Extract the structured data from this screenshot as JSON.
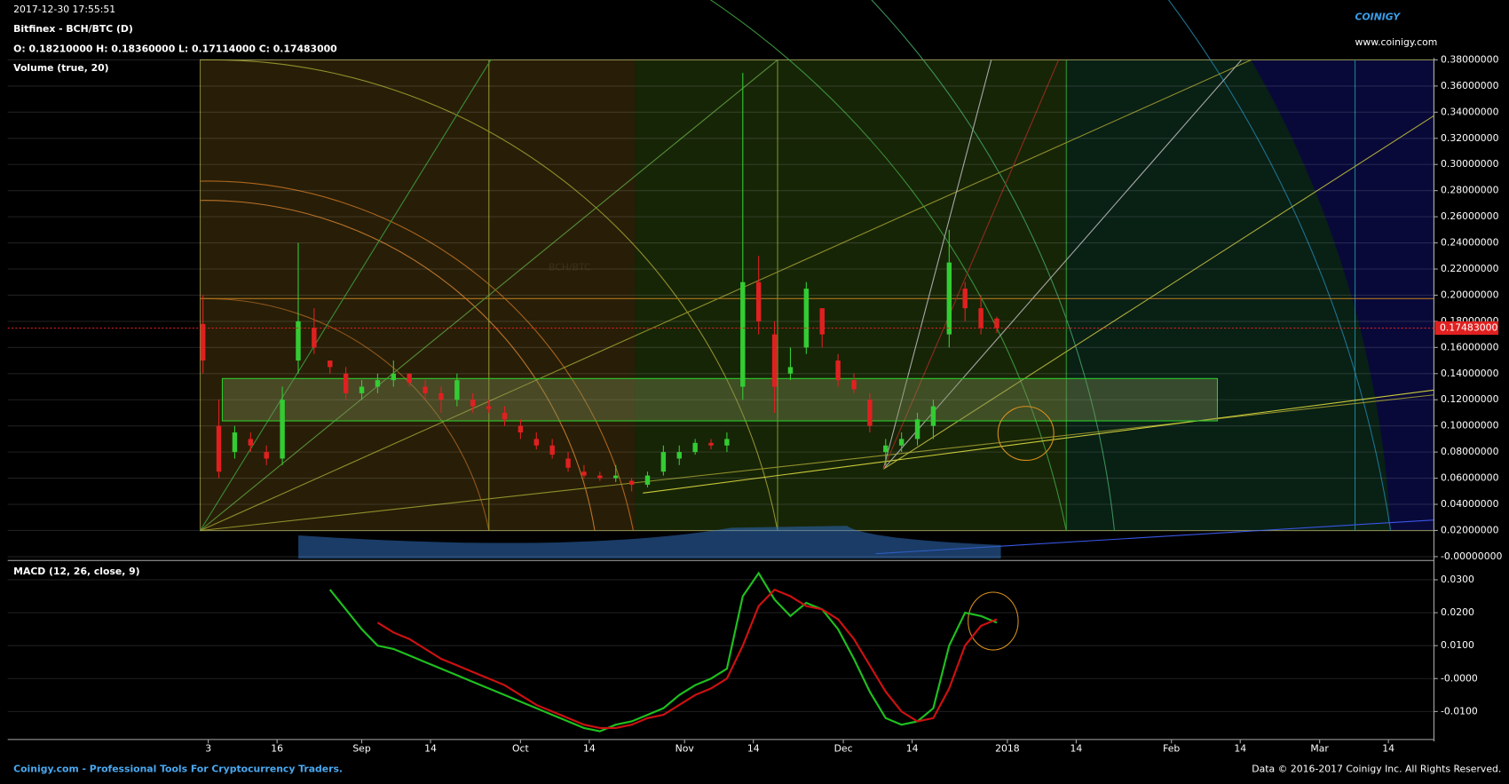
{
  "header": {
    "timestamp": "2017-12-30 17:55:51",
    "ohlc": "O: 0.18210000 H: 0.18360000 L: 0.17114000 C: 0.17483000",
    "logo": "COINIGY",
    "site": "www.coinigy.com",
    "volume_label": "Volume (true, 20)",
    "watermark": "BCH/BTC"
  },
  "footer": {
    "left": "Coinigy.com - Professional Tools For Cryptocurrency Traders.",
    "right": "Data © 2016-2017 Coinigy Inc. All Rights Reserved."
  },
  "chart_data": [
    {
      "type": "candlestick",
      "title": "Bitfinex - BCH/BTC (D)",
      "up_color": "#33cc33",
      "down_color": "#e02020",
      "x": [
        1,
        4,
        7,
        10,
        13,
        16,
        19,
        22,
        25,
        28,
        31,
        34,
        37,
        40,
        43,
        46,
        49,
        52,
        55,
        58,
        61,
        64,
        67,
        70,
        73,
        76,
        79,
        82,
        85,
        88,
        91,
        94,
        97,
        100,
        103,
        106,
        109,
        112,
        115,
        118,
        121,
        124,
        127,
        130,
        133,
        136,
        139,
        142,
        145,
        148,
        151
      ],
      "open": [
        0.178,
        0.1,
        0.08,
        0.09,
        0.08,
        0.075,
        0.15,
        0.175,
        0.15,
        0.14,
        0.125,
        0.13,
        0.135,
        0.14,
        0.13,
        0.125,
        0.12,
        0.12,
        0.115,
        0.11,
        0.1,
        0.09,
        0.085,
        0.075,
        0.065,
        0.062,
        0.06,
        0.058,
        0.055,
        0.065,
        0.075,
        0.08,
        0.087,
        0.085,
        0.13,
        0.21,
        0.17,
        0.14,
        0.16,
        0.19,
        0.15,
        0.135,
        0.12,
        0.08,
        0.085,
        0.09,
        0.1,
        0.17,
        0.205,
        0.19,
        0.1821
      ],
      "high": [
        0.2,
        0.12,
        0.1,
        0.095,
        0.085,
        0.13,
        0.24,
        0.19,
        0.15,
        0.145,
        0.135,
        0.14,
        0.15,
        0.14,
        0.135,
        0.13,
        0.14,
        0.125,
        0.12,
        0.115,
        0.105,
        0.095,
        0.09,
        0.08,
        0.07,
        0.065,
        0.07,
        0.06,
        0.065,
        0.085,
        0.085,
        0.09,
        0.09,
        0.095,
        0.37,
        0.23,
        0.18,
        0.16,
        0.21,
        0.19,
        0.155,
        0.14,
        0.125,
        0.09,
        0.095,
        0.11,
        0.12,
        0.25,
        0.21,
        0.2,
        0.1836
      ],
      "low": [
        0.14,
        0.06,
        0.075,
        0.08,
        0.07,
        0.07,
        0.14,
        0.155,
        0.14,
        0.12,
        0.12,
        0.125,
        0.13,
        0.13,
        0.12,
        0.11,
        0.115,
        0.11,
        0.11,
        0.1,
        0.09,
        0.082,
        0.075,
        0.065,
        0.06,
        0.058,
        0.057,
        0.05,
        0.053,
        0.062,
        0.07,
        0.078,
        0.082,
        0.08,
        0.12,
        0.17,
        0.11,
        0.135,
        0.155,
        0.16,
        0.13,
        0.125,
        0.095,
        0.07,
        0.08,
        0.085,
        0.09,
        0.16,
        0.18,
        0.17,
        0.17114
      ],
      "close": [
        0.15,
        0.065,
        0.095,
        0.085,
        0.075,
        0.12,
        0.18,
        0.16,
        0.145,
        0.125,
        0.13,
        0.135,
        0.14,
        0.133,
        0.125,
        0.12,
        0.135,
        0.115,
        0.113,
        0.105,
        0.095,
        0.085,
        0.078,
        0.068,
        0.062,
        0.06,
        0.062,
        0.055,
        0.062,
        0.08,
        0.08,
        0.087,
        0.085,
        0.09,
        0.21,
        0.18,
        0.13,
        0.145,
        0.205,
        0.17,
        0.135,
        0.128,
        0.1,
        0.085,
        0.09,
        0.105,
        0.115,
        0.225,
        0.19,
        0.175,
        0.17483
      ],
      "last_price": {
        "value": 0.17483,
        "label": "0.17483000"
      },
      "xlim": [
        -35.9,
        233.6
      ],
      "ylim": [
        0,
        0.38
      ],
      "yticks": [
        {
          "value": 0,
          "label": "-0.00000000"
        },
        {
          "value": 0.02,
          "label": "0.02000000"
        },
        {
          "value": 0.04,
          "label": "0.04000000"
        },
        {
          "value": 0.06,
          "label": "0.06000000"
        },
        {
          "value": 0.08,
          "label": "0.08000000"
        },
        {
          "value": 0.1,
          "label": "0.10000000"
        },
        {
          "value": 0.12,
          "label": "0.12000000"
        },
        {
          "value": 0.14,
          "label": "0.14000000"
        },
        {
          "value": 0.16,
          "label": "0.16000000"
        },
        {
          "value": 0.18,
          "label": "0.18000000"
        },
        {
          "value": 0.2,
          "label": "0.20000000"
        },
        {
          "value": 0.22,
          "label": "0.22000000"
        },
        {
          "value": 0.24,
          "label": "0.24000000"
        },
        {
          "value": 0.26,
          "label": "0.26000000"
        },
        {
          "value": 0.28,
          "label": "0.28000000"
        },
        {
          "value": 0.3,
          "label": "0.30000000"
        },
        {
          "value": 0.32,
          "label": "0.32000000"
        },
        {
          "value": 0.34,
          "label": "0.34000000"
        },
        {
          "value": 0.36,
          "label": "0.36000000"
        },
        {
          "value": 0.38,
          "label": "0.38000000"
        }
      ],
      "grid": true
    },
    {
      "type": "line",
      "title": "MACD (12, 26, close, 9)",
      "x": [
        1,
        4,
        7,
        10,
        13,
        16,
        19,
        22,
        25,
        28,
        31,
        34,
        37,
        40,
        43,
        46,
        49,
        52,
        55,
        58,
        61,
        64,
        67,
        70,
        73,
        76,
        79,
        82,
        85,
        88,
        91,
        94,
        97,
        100,
        103,
        106,
        109,
        112,
        115,
        118,
        121,
        124,
        127,
        130,
        133,
        136,
        139,
        142,
        145,
        148,
        151
      ],
      "series": [
        {
          "color": "#1fbf1f",
          "values": [
            null,
            null,
            null,
            null,
            null,
            null,
            null,
            null,
            0.027,
            0.021,
            0.015,
            0.01,
            0.009,
            0.007,
            0.005,
            0.003,
            0.001,
            -0.001,
            -0.003,
            -0.005,
            -0.007,
            -0.009,
            -0.011,
            -0.013,
            -0.015,
            -0.016,
            -0.014,
            -0.013,
            -0.011,
            -0.009,
            -0.005,
            -0.002,
            0.0,
            0.003,
            0.025,
            0.032,
            0.024,
            0.019,
            0.023,
            0.021,
            0.015,
            0.006,
            -0.004,
            -0.012,
            -0.014,
            -0.013,
            -0.009,
            0.01,
            0.02,
            0.019,
            0.017
          ]
        },
        {
          "color": "#cc1111",
          "values": [
            null,
            null,
            null,
            null,
            null,
            null,
            null,
            null,
            null,
            null,
            null,
            0.017,
            0.014,
            0.012,
            0.009,
            0.006,
            0.004,
            0.002,
            0.0,
            -0.002,
            -0.005,
            -0.008,
            -0.01,
            -0.012,
            -0.014,
            -0.015,
            -0.015,
            -0.014,
            -0.012,
            -0.011,
            -0.008,
            -0.005,
            -0.003,
            0.0,
            0.01,
            0.022,
            0.027,
            0.025,
            0.022,
            0.021,
            0.018,
            0.012,
            0.004,
            -0.004,
            -0.01,
            -0.013,
            -0.012,
            -0.003,
            0.01,
            0.016,
            0.018
          ]
        }
      ],
      "xlim": [
        -35.9,
        233.6
      ],
      "ylim": [
        -0.0185,
        0.0344
      ],
      "yticks": [
        {
          "value": -0.01,
          "label": "-0.0100"
        },
        {
          "value": 0,
          "label": "-0.0000"
        },
        {
          "value": 0.01,
          "label": "0.0100"
        },
        {
          "value": 0.02,
          "label": "0.0200"
        },
        {
          "value": 0.03,
          "label": "0.0300"
        }
      ],
      "xticks": [
        {
          "value": 2,
          "label": "3"
        },
        {
          "value": 15,
          "label": "16"
        },
        {
          "value": 31,
          "label": "Sep"
        },
        {
          "value": 44,
          "label": "14"
        },
        {
          "value": 61,
          "label": "Oct"
        },
        {
          "value": 74,
          "label": "14"
        },
        {
          "value": 92,
          "label": "Nov"
        },
        {
          "value": 105,
          "label": "14"
        },
        {
          "value": 122,
          "label": "Dec"
        },
        {
          "value": 135,
          "label": "14"
        },
        {
          "value": 153,
          "label": "2018"
        },
        {
          "value": 166,
          "label": "14"
        },
        {
          "value": 184,
          "label": "Feb"
        },
        {
          "value": 197,
          "label": "14"
        },
        {
          "value": 212,
          "label": "Mar"
        },
        {
          "value": 225,
          "label": "14"
        }
      ],
      "grid": true
    }
  ]
}
